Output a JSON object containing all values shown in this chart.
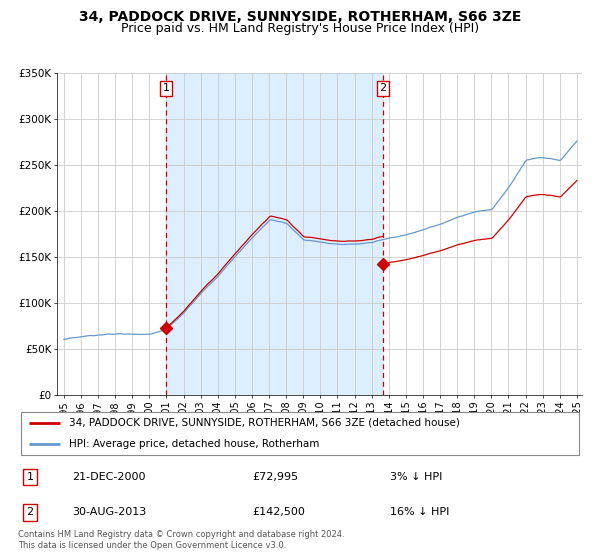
{
  "title": "34, PADDOCK DRIVE, SUNNYSIDE, ROTHERHAM, S66 3ZE",
  "subtitle": "Price paid vs. HM Land Registry's House Price Index (HPI)",
  "legend_line1": "34, PADDOCK DRIVE, SUNNYSIDE, ROTHERHAM, S66 3ZE (detached house)",
  "legend_line2": "HPI: Average price, detached house, Rotherham",
  "footnote1": "Contains HM Land Registry data © Crown copyright and database right 2024.",
  "footnote2": "This data is licensed under the Open Government Licence v3.0.",
  "marker1_label": "1",
  "marker1_date": "21-DEC-2000",
  "marker1_price": "£72,995",
  "marker1_hpi": "3% ↓ HPI",
  "marker1_x": 2000.97,
  "marker1_y": 72995,
  "marker2_label": "2",
  "marker2_date": "30-AUG-2013",
  "marker2_price": "£142,500",
  "marker2_hpi": "16% ↓ HPI",
  "marker2_x": 2013.66,
  "marker2_y": 142500,
  "vline1_x": 2000.97,
  "vline2_x": 2013.66,
  "shade_start": 2000.97,
  "shade_end": 2013.66,
  "ylim": [
    0,
    350000
  ],
  "xlim_start": 1994.6,
  "xlim_end": 2025.3,
  "price_line_color": "#cc0000",
  "hpi_line_color": "#6699cc",
  "shade_color": "#ddeeff",
  "background_color": "#ffffff",
  "grid_color": "#cccccc",
  "title_fontsize": 10,
  "subtitle_fontsize": 9
}
